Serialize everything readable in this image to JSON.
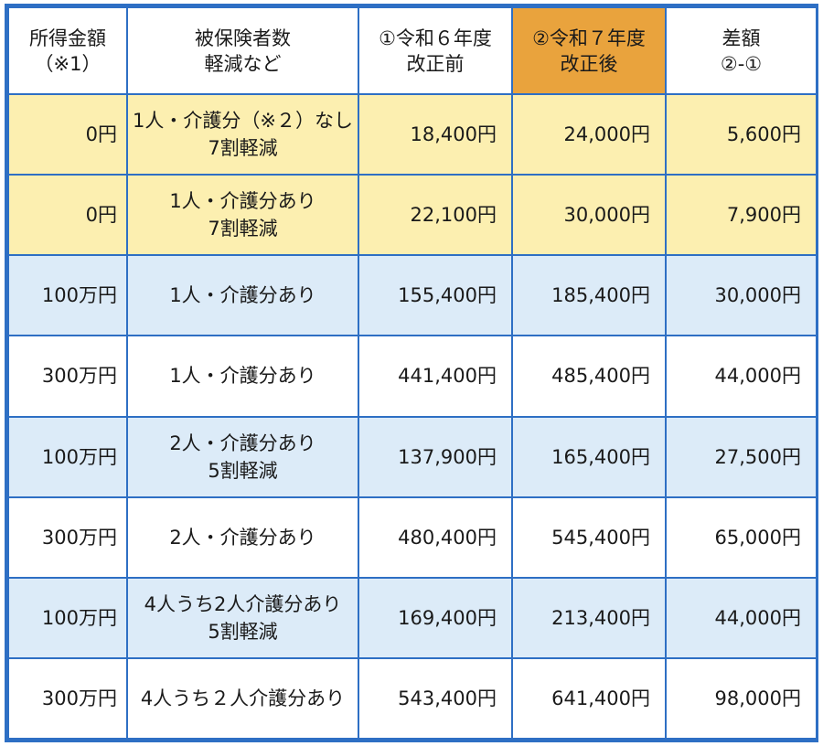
{
  "headers": [
    "所得金額\n（※1）",
    "被保険者数\n軽減など",
    "①令和６年度\n改正前",
    "②令和７年度\n改正後",
    "差額\n②-①"
  ],
  "colors": {
    "border": "#2e6fc4",
    "highlight_header": "#e9a33d",
    "row_yellow": "#fcefb0",
    "row_blue": "#dcebf8",
    "row_white": "#ffffff"
  },
  "rows": [
    {
      "income": "0円",
      "persons": "1人・介護分（※２）なし\n7割軽減",
      "before": "18,400円",
      "after": "24,000円",
      "diff": "5,600円",
      "tint": "yellow"
    },
    {
      "income": "0円",
      "persons": "1人・介護分あり\n7割軽減",
      "before": "22,100円",
      "after": "30,000円",
      "diff": "7,900円",
      "tint": "yellow"
    },
    {
      "income": "100万円",
      "persons": "1人・介護分あり",
      "before": "155,400円",
      "after": "185,400円",
      "diff": "30,000円",
      "tint": "blue"
    },
    {
      "income": "300万円",
      "persons": "1人・介護分あり",
      "before": "441,400円",
      "after": "485,400円",
      "diff": "44,000円",
      "tint": "white"
    },
    {
      "income": "100万円",
      "persons": "2人・介護分あり\n5割軽減",
      "before": "137,900円",
      "after": "165,400円",
      "diff": "27,500円",
      "tint": "blue"
    },
    {
      "income": "300万円",
      "persons": "2人・介護分あり",
      "before": "480,400円",
      "after": "545,400円",
      "diff": "65,000円",
      "tint": "white"
    },
    {
      "income": "100万円",
      "persons": "4人うち2人介護分あり\n5割軽減",
      "before": "169,400円",
      "after": "213,400円",
      "diff": "44,000円",
      "tint": "blue"
    },
    {
      "income": "300万円",
      "persons": "4人うち２人介護分あり",
      "before": "543,400円",
      "after": "641,400円",
      "diff": "98,000円",
      "tint": "white"
    }
  ]
}
